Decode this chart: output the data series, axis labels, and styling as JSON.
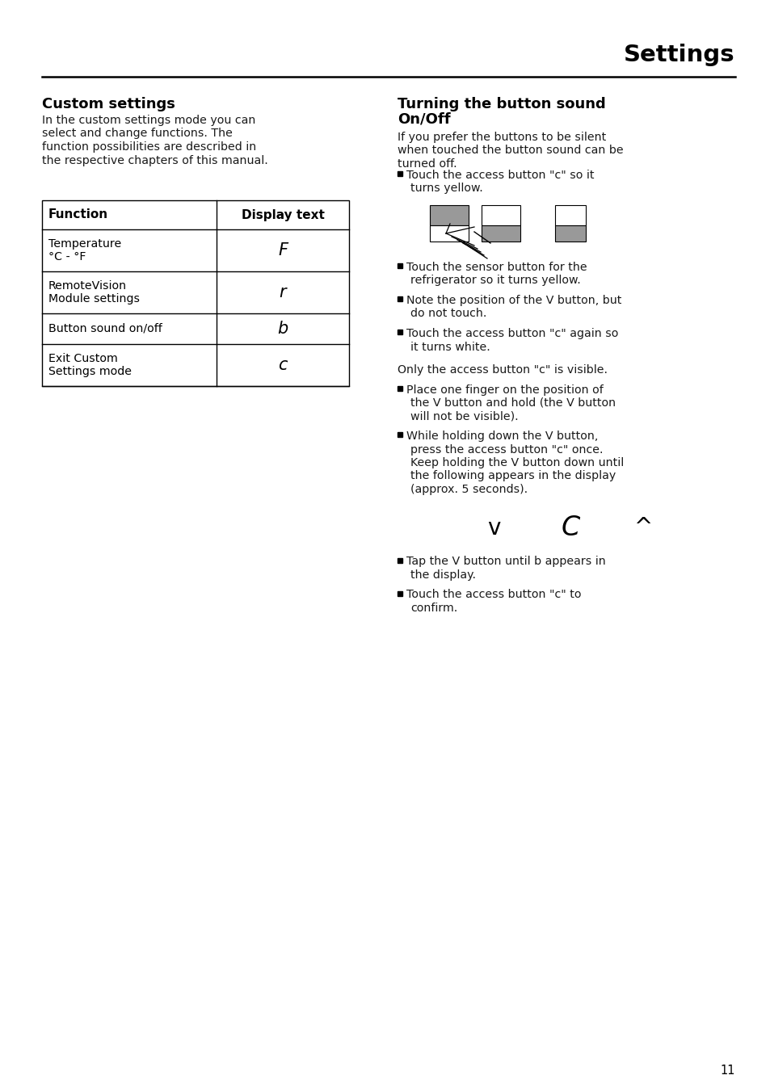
{
  "page_title": "Settings",
  "left_section_title": "Custom settings",
  "left_intro_lines": [
    "In the custom settings mode you can",
    "select and change functions. The",
    "function possibilities are described in",
    "the respective chapters of this manual."
  ],
  "table_headers": [
    "Function",
    "Display text"
  ],
  "table_rows": [
    [
      "Temperature\n°C - °F",
      "F"
    ],
    [
      "RemoteVision\nModule settings",
      "r"
    ],
    [
      "Button sound on/off",
      "b"
    ],
    [
      "Exit Custom\nSettings mode",
      "c"
    ]
  ],
  "right_section_title_line1": "Turning the button sound",
  "right_section_title_line2": "On/Off",
  "right_intro_lines": [
    "If you prefer the buttons to be silent",
    "when touched the button sound can be",
    "turned off."
  ],
  "bullet1_lines": [
    "Touch the access button \"ᴄ\" so it",
    "turns yellow."
  ],
  "bullet2_lines": [
    "Touch the sensor button for the",
    "refrigerator so it turns yellow."
  ],
  "bullet3_lines": [
    "Note the position of the V button, but",
    "do not touch."
  ],
  "bullet4_lines": [
    "Touch the access button \"ᴄ\" again so",
    "it turns white."
  ],
  "non_bullet": "Only the access button \"ᴄ\" is visible.",
  "bullet5_lines": [
    "Place one finger on the position of",
    "the V button and hold (the V button",
    "will not be visible)."
  ],
  "bullet6_lines": [
    "While holding down the V button,",
    "press the access button \"ᴄ\" once.",
    "Keep holding the V button down until",
    "the following appears in the display",
    "(approx. 5 seconds)."
  ],
  "bullet7_lines": [
    "Tap the V button until b appears in",
    "the display."
  ],
  "bullet8_lines": [
    "Touch the access button \"ᴄ\" to",
    "confirm."
  ],
  "page_number": "11",
  "bg_color": "#ffffff",
  "text_color": "#1a1a1a",
  "title_color": "#000000"
}
